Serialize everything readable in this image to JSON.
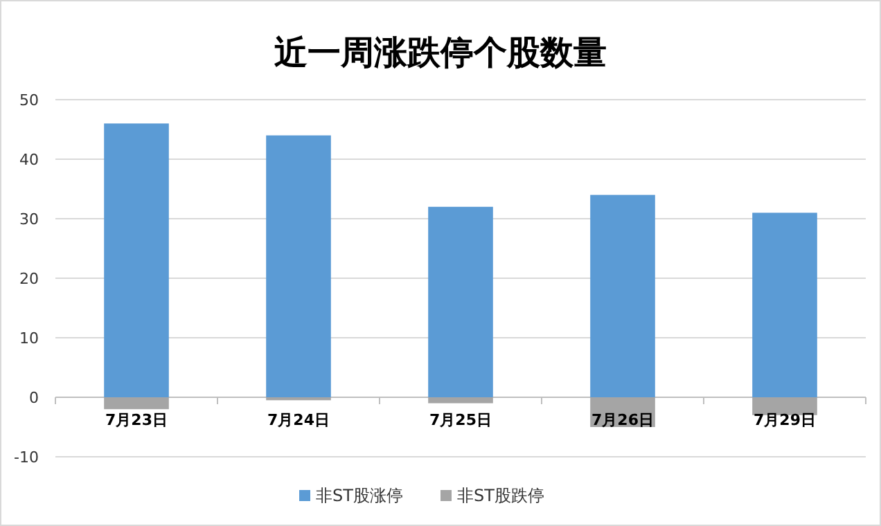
{
  "chart_data": {
    "type": "bar",
    "title": "近一周涨跌停个股数量",
    "categories": [
      "7月23日",
      "7月24日",
      "7月25日",
      "7月26日",
      "7月29日"
    ],
    "stacked": true,
    "series": [
      {
        "name": "非ST股涨停",
        "color": "#5b9bd5",
        "values": [
          46,
          44,
          32,
          34,
          31
        ]
      },
      {
        "name": "非ST股跌停",
        "color": "#a5a5a5",
        "values": [
          -2,
          -0.5,
          -1,
          -5,
          -3
        ]
      }
    ],
    "ylim": [
      -10,
      50
    ],
    "yticks": [
      -10,
      0,
      10,
      20,
      30,
      40,
      50
    ],
    "grid": "y",
    "legend": "bottom"
  }
}
